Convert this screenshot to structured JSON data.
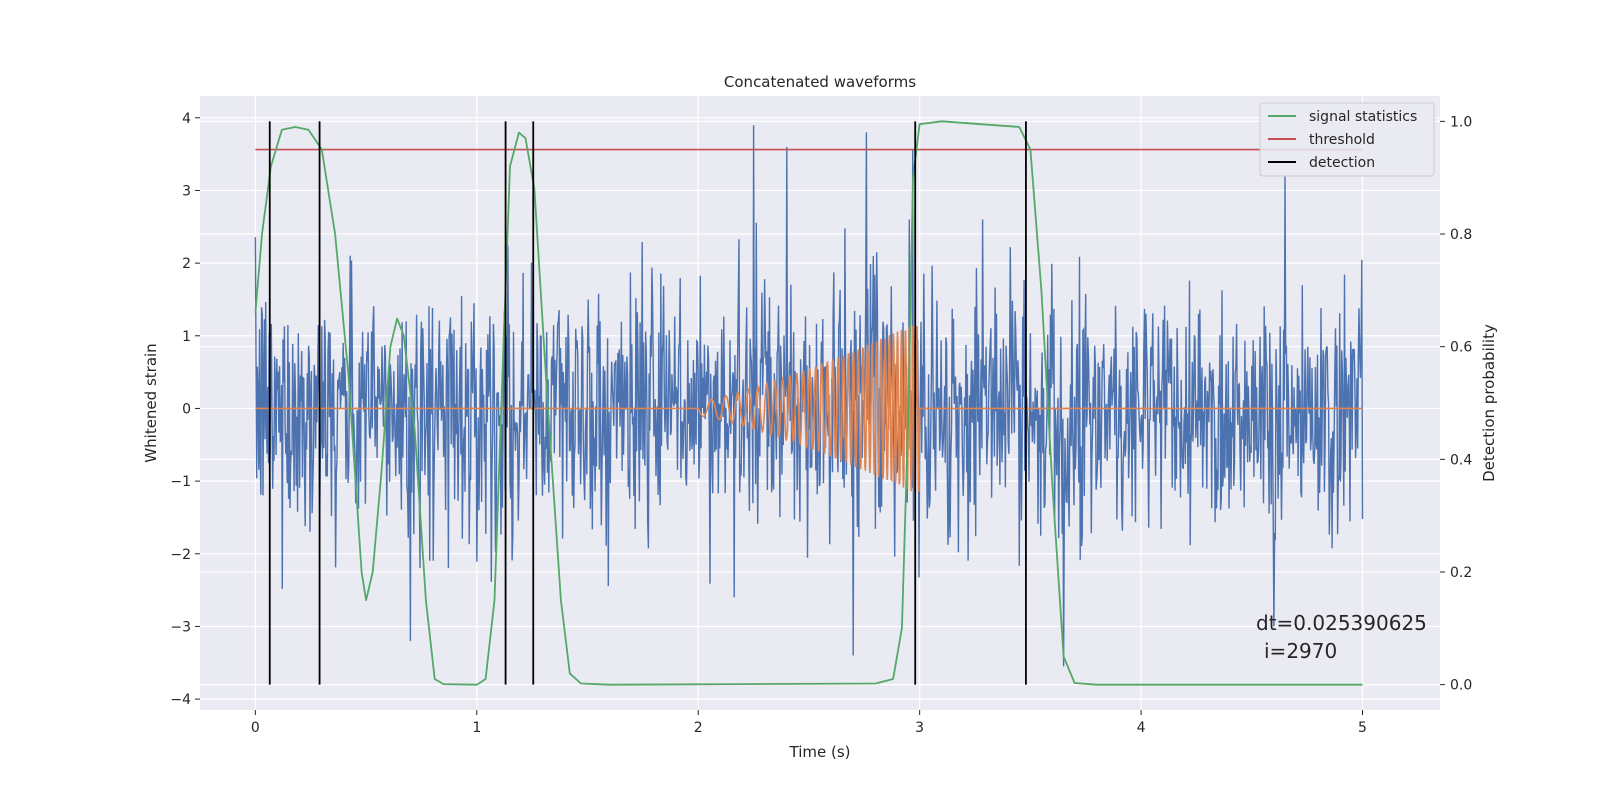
{
  "chart_data": {
    "type": "line",
    "title": "Concatenated waveforms",
    "xlabel": "Time (s)",
    "ylabel": "Whitened strain",
    "y2label": "Detection probability",
    "xlim": [
      -0.25,
      5.35
    ],
    "ylim": [
      -4.15,
      4.3
    ],
    "y2lim": [
      -0.045,
      1.045
    ],
    "xticks": [
      0,
      1,
      2,
      3,
      4,
      5
    ],
    "yticks": [
      -4,
      -3,
      -2,
      -1,
      0,
      1,
      2,
      3,
      4
    ],
    "y2ticks": [
      0.0,
      0.2,
      0.4,
      0.6,
      0.8,
      1.0
    ],
    "xtick_labels": [
      "0",
      "1",
      "2",
      "3",
      "4",
      "5"
    ],
    "ytick_labels": [
      "−4",
      "−3",
      "−2",
      "−1",
      "0",
      "1",
      "2",
      "3",
      "4"
    ],
    "y2tick_labels": [
      "0.0",
      "0.2",
      "0.4",
      "0.6",
      "0.8",
      "1.0"
    ],
    "grid": true,
    "legend_position": "top-right",
    "series": [
      {
        "role": "whitened-strain-noise",
        "axis": "left",
        "color": "#4c72b0",
        "x_range": [
          0,
          5
        ],
        "typical_range": [
          -1.8,
          1.8
        ],
        "peaks": [
          {
            "x": 2.25,
            "y": 3.9
          },
          {
            "x": 2.4,
            "y": 3.6
          },
          {
            "x": 2.76,
            "y": 3.8
          },
          {
            "x": 2.97,
            "y": 3.55
          },
          {
            "x": 4.65,
            "y": 3.2
          },
          {
            "x": 0.7,
            "y": -3.2
          },
          {
            "x": 2.7,
            "y": -3.4
          },
          {
            "x": 3.65,
            "y": -3.55
          },
          {
            "x": 4.6,
            "y": -3.0
          }
        ]
      },
      {
        "role": "injected-chirp",
        "axis": "left",
        "color": "#dd8452",
        "x_range": [
          0,
          5
        ],
        "chirp_start": 2.0,
        "chirp_end": 3.0,
        "amplitude_start": 0.1,
        "amplitude_end": 1.2,
        "frequency_start": 11,
        "frequency_end": 60
      },
      {
        "name": "signal statistics",
        "axis": "right",
        "color": "#55a868",
        "points": [
          [
            0.0,
            0.66
          ],
          [
            0.03,
            0.8
          ],
          [
            0.07,
            0.92
          ],
          [
            0.12,
            0.985
          ],
          [
            0.18,
            0.99
          ],
          [
            0.24,
            0.985
          ],
          [
            0.3,
            0.95
          ],
          [
            0.36,
            0.8
          ],
          [
            0.42,
            0.55
          ],
          [
            0.48,
            0.2
          ],
          [
            0.5,
            0.15
          ],
          [
            0.53,
            0.2
          ],
          [
            0.57,
            0.38
          ],
          [
            0.61,
            0.6
          ],
          [
            0.64,
            0.65
          ],
          [
            0.67,
            0.62
          ],
          [
            0.72,
            0.45
          ],
          [
            0.77,
            0.15
          ],
          [
            0.81,
            0.01
          ],
          [
            0.85,
            0.001
          ],
          [
            1.0,
            0.0
          ],
          [
            1.04,
            0.01
          ],
          [
            1.08,
            0.15
          ],
          [
            1.12,
            0.6
          ],
          [
            1.15,
            0.92
          ],
          [
            1.19,
            0.98
          ],
          [
            1.22,
            0.97
          ],
          [
            1.26,
            0.88
          ],
          [
            1.32,
            0.5
          ],
          [
            1.38,
            0.15
          ],
          [
            1.42,
            0.02
          ],
          [
            1.47,
            0.002
          ],
          [
            1.6,
            0.0
          ],
          [
            2.2,
            0.001
          ],
          [
            2.8,
            0.002
          ],
          [
            2.88,
            0.01
          ],
          [
            2.92,
            0.1
          ],
          [
            2.95,
            0.5
          ],
          [
            2.97,
            0.9
          ],
          [
            3.0,
            0.995
          ],
          [
            3.1,
            1.0
          ],
          [
            3.45,
            0.99
          ],
          [
            3.5,
            0.95
          ],
          [
            3.55,
            0.7
          ],
          [
            3.6,
            0.35
          ],
          [
            3.65,
            0.05
          ],
          [
            3.7,
            0.003
          ],
          [
            3.8,
            0.0
          ],
          [
            5.0,
            0.0
          ]
        ]
      },
      {
        "name": "threshold",
        "axis": "right",
        "color": "#c44e52",
        "x_range": [
          0,
          5
        ],
        "value": 0.95
      },
      {
        "name": "detection",
        "axis": "right",
        "color": "#000000",
        "x": [
          0.065,
          0.29,
          1.13,
          1.255,
          2.98,
          3.48
        ],
        "y_range": [
          0,
          1
        ]
      }
    ],
    "annotations": [
      "dt=0.025390625",
      "i=2970"
    ]
  }
}
